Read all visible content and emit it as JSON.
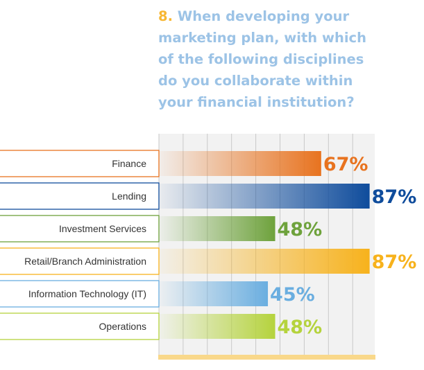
{
  "title": {
    "number": "8.",
    "lines": [
      "When developing your",
      "marketing plan, with which",
      "of the following disciplines",
      "do you collaborate within",
      "your financial institution?"
    ]
  },
  "chart_data": {
    "type": "bar",
    "orientation": "horizontal",
    "categories": [
      "Finance",
      "Lending",
      "Investment Services",
      "Retail/Branch Administration",
      "Information Technology (IT)",
      "Operations"
    ],
    "values": [
      67,
      87,
      48,
      87,
      45,
      48
    ],
    "value_labels": [
      "67%",
      "87%",
      "48%",
      "87%",
      "45%",
      "48%"
    ],
    "colors": [
      "#e8731f",
      "#0f4c9c",
      "#6ea23c",
      "#f7b21c",
      "#6aaee0",
      "#b5d33d"
    ],
    "xlim": [
      0,
      100
    ],
    "grid": true,
    "legend": "none"
  }
}
